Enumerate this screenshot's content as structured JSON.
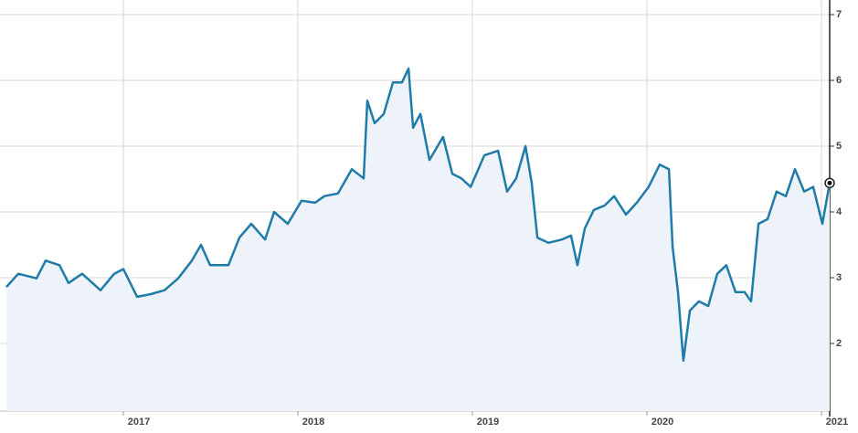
{
  "chart_data": {
    "type": "line",
    "x": [
      2016.33,
      2016.398,
      2016.503,
      2016.555,
      2016.634,
      2016.686,
      2016.764,
      2016.869,
      2016.948,
      2017.0,
      2017.079,
      2017.157,
      2017.236,
      2017.314,
      2017.393,
      2017.445,
      2017.497,
      2017.602,
      2017.665,
      2017.733,
      2017.812,
      2017.864,
      2017.942,
      2018.021,
      2018.099,
      2018.152,
      2018.23,
      2018.309,
      2018.377,
      2018.398,
      2018.44,
      2018.492,
      2018.545,
      2018.597,
      2018.634,
      2018.66,
      2018.702,
      2018.754,
      2018.832,
      2018.885,
      2018.937,
      2018.99,
      2019.068,
      2019.147,
      2019.199,
      2019.251,
      2019.304,
      2019.34,
      2019.372,
      2019.435,
      2019.513,
      2019.565,
      2019.602,
      2019.644,
      2019.696,
      2019.759,
      2019.812,
      2019.88,
      2019.942,
      2020.01,
      2020.073,
      2020.126,
      2020.147,
      2020.178,
      2020.209,
      2020.246,
      2020.298,
      2020.351,
      2020.403,
      2020.455,
      2020.508,
      2020.56,
      2020.597,
      2020.639,
      2020.691,
      2020.743,
      2020.796,
      2020.848,
      2020.901,
      2020.953,
      2021.005,
      2021.047
    ],
    "values": [
      2.86,
      3.06,
      2.99,
      3.26,
      3.19,
      2.92,
      3.06,
      2.81,
      3.06,
      3.13,
      2.71,
      2.75,
      2.81,
      2.99,
      3.26,
      3.5,
      3.19,
      3.19,
      3.61,
      3.82,
      3.58,
      4.0,
      3.82,
      4.17,
      4.14,
      4.24,
      4.28,
      4.65,
      4.51,
      5.69,
      5.35,
      5.49,
      5.97,
      5.97,
      6.18,
      5.28,
      5.49,
      4.79,
      5.14,
      4.58,
      4.51,
      4.38,
      4.86,
      4.93,
      4.31,
      4.51,
      5.0,
      4.44,
      3.61,
      3.53,
      3.58,
      3.64,
      3.19,
      3.75,
      4.03,
      4.1,
      4.24,
      3.96,
      4.14,
      4.38,
      4.72,
      4.65,
      3.47,
      2.78,
      1.74,
      2.5,
      2.64,
      2.57,
      3.06,
      3.19,
      2.78,
      2.78,
      2.64,
      3.82,
      3.89,
      4.31,
      4.24,
      4.65,
      4.31,
      4.38,
      3.82,
      4.44
    ],
    "color": "#1f7ba8",
    "xlim": [
      2016.33,
      2021.047
    ],
    "xticks": [
      2017,
      2018,
      2019,
      2020,
      2021
    ],
    "ylim": [
      1,
      7
    ],
    "yticks": [
      2,
      3,
      4,
      5,
      6,
      7
    ],
    "grid": true
  }
}
